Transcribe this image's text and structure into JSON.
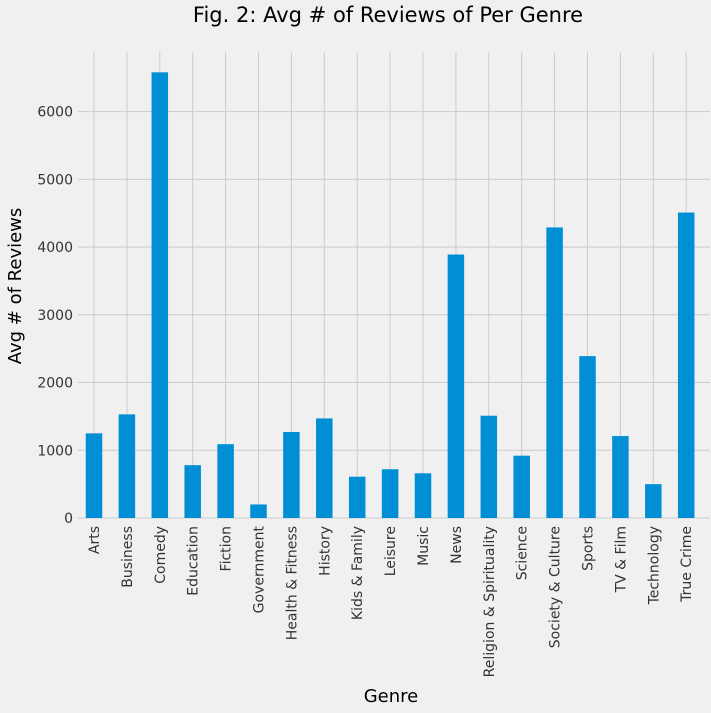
{
  "chart_data": {
    "type": "bar",
    "title": "Fig. 2: Avg # of Reviews of Per Genre",
    "xlabel": "Genre",
    "ylabel": "Avg # of Reviews",
    "categories": [
      "Arts",
      "Business",
      "Comedy",
      "Education",
      "Fiction",
      "Government",
      "Health & Fitness",
      "History",
      "Kids & Family",
      "Leisure",
      "Music",
      "News",
      "Religion & Spirituality",
      "Science",
      "Society & Culture",
      "Sports",
      "TV & Film",
      "Technology",
      "True Crime"
    ],
    "values": [
      1250,
      1530,
      6580,
      780,
      1090,
      200,
      1270,
      1470,
      610,
      720,
      660,
      3890,
      1510,
      920,
      4290,
      2390,
      1210,
      500,
      4510
    ],
    "ylim": [
      0,
      6880
    ],
    "yticks": [
      0,
      1000,
      2000,
      3000,
      4000,
      5000,
      6000
    ],
    "grid": true,
    "bar_color": "#008fd5"
  }
}
